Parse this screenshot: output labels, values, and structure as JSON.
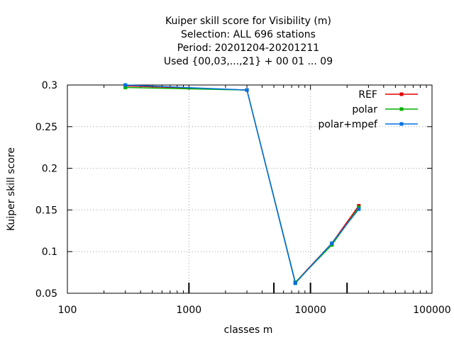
{
  "chart_data": {
    "type": "line",
    "title_lines": [
      "Kuiper skill score  for Visibility (m)",
      "Selection: ALL    696 stations",
      "Period: 20201204-20201211",
      "Used {00,03,...,21} + 00 01 ... 09"
    ],
    "xlabel": "classes m",
    "ylabel": "Kuiper skill score",
    "xscale": "log",
    "xlim": [
      100,
      100000
    ],
    "ylim": [
      0.05,
      0.3
    ],
    "x_ticks": [
      {
        "value": 100,
        "label": "100"
      },
      {
        "value": 1000,
        "label": "1000"
      },
      {
        "value": 10000,
        "label": "10000"
      },
      {
        "value": 100000,
        "label": "100000"
      }
    ],
    "y_ticks": [
      {
        "value": 0.05,
        "label": "0.05"
      },
      {
        "value": 0.1,
        "label": "0.1"
      },
      {
        "value": 0.15,
        "label": "0.15"
      },
      {
        "value": 0.2,
        "label": "0.2"
      },
      {
        "value": 0.25,
        "label": "0.25"
      },
      {
        "value": 0.3,
        "label": "0.3"
      }
    ],
    "threshold_marks": [
      1000,
      5000,
      10000,
      20000
    ],
    "grid": true,
    "legend_position": "top-right",
    "series": [
      {
        "name": "REF",
        "color": "#e00000",
        "x": [
          300,
          3000,
          7500,
          15000,
          25000
        ],
        "y": [
          0.299,
          0.294,
          0.063,
          0.11,
          0.155
        ]
      },
      {
        "name": "polar",
        "color": "#00b000",
        "x": [
          300,
          3000,
          7500,
          15000,
          25000
        ],
        "y": [
          0.297,
          0.294,
          0.063,
          0.108,
          0.153
        ]
      },
      {
        "name": "polar+mpef",
        "color": "#0070e0",
        "x": [
          300,
          3000,
          7500,
          15000,
          25000
        ],
        "y": [
          0.3,
          0.294,
          0.062,
          0.11,
          0.151
        ]
      }
    ]
  }
}
